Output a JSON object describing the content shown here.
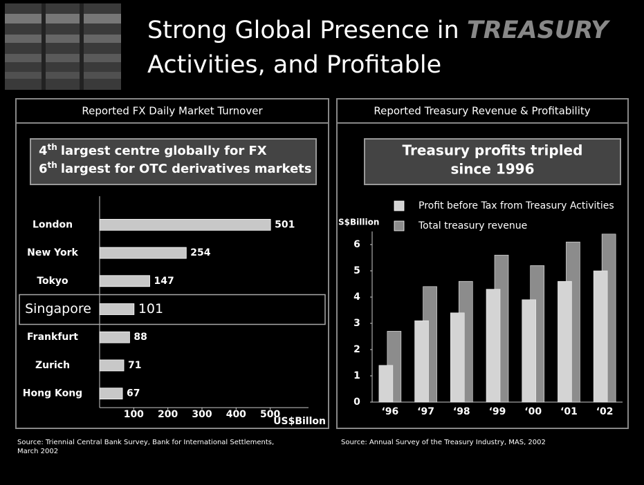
{
  "slide_title": {
    "line1": "Strong Global Presence in",
    "highlight": "TREASURY",
    "line2": "Activities, and Profitable"
  },
  "chart_data": [
    {
      "type": "hbar",
      "title": "Reported FX Daily Market Turnover",
      "callout": [
        {
          "num": "4",
          "sup": "th",
          "text": "largest centre globally for FX"
        },
        {
          "num": "6",
          "sup": "th",
          "text": "largest for OTC derivatives markets"
        }
      ],
      "categories": [
        "London",
        "New York",
        "Tokyo",
        "Singapore",
        "Frankfurt",
        "Zurich",
        "Hong Kong"
      ],
      "values": [
        501,
        254,
        147,
        101,
        88,
        71,
        67
      ],
      "color": "#c8c8c8",
      "highlight_index": 3,
      "xlim": [
        0,
        600
      ],
      "xticks": [
        100,
        200,
        300,
        400,
        500
      ],
      "xlabel": "US$Billon",
      "source": [
        "Source: Triennial Central Bank Survey, Bank for International Settlements,",
        "March 2002"
      ]
    },
    {
      "type": "bar",
      "title": "Reported Treasury Revenue & Profitability",
      "callout": [
        "Treasury profits tripled",
        "since 1996"
      ],
      "ylabel": "S$Billion",
      "categories": [
        "‘96",
        "‘97",
        "‘98",
        "‘99",
        "‘00",
        "‘01",
        "‘02"
      ],
      "series": [
        {
          "name": "Profit before Tax from Treasury Activities",
          "color": "#d4d4d4",
          "values": [
            1.4,
            3.1,
            3.4,
            4.3,
            3.9,
            4.6,
            5.0
          ]
        },
        {
          "name": "Total treasury revenue",
          "color": "#8c8c8c",
          "values": [
            2.7,
            4.4,
            4.6,
            5.6,
            5.2,
            6.1,
            6.4
          ]
        }
      ],
      "ylim": [
        0,
        6.5
      ],
      "yticks": [
        0,
        1,
        2,
        3,
        4,
        5,
        6
      ],
      "source": [
        "Source: Annual Survey of the Treasury Industry, MAS, 2002"
      ]
    }
  ]
}
